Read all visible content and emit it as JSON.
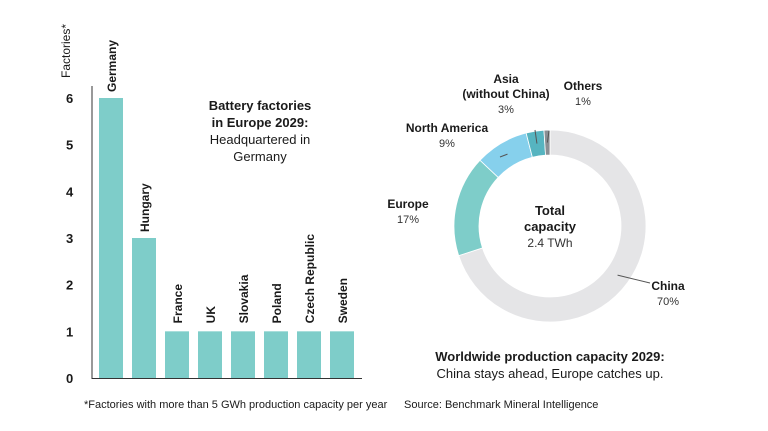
{
  "chart_data": [
    {
      "type": "bar",
      "title": "Battery factories",
      "title_line2": "in Europe 2029:",
      "subtitle": "Headquartered in",
      "subtitle_line2": "Germany",
      "ylabel": "Factories*",
      "xlabel": "",
      "ylim": [
        0,
        6
      ],
      "yticks": [
        "0",
        "1",
        "2",
        "3",
        "4",
        "5",
        "6"
      ],
      "categories": [
        "Germany",
        "Hungary",
        "France",
        "UK",
        "Slovakia",
        "Poland",
        "Czech Republic",
        "Sweden"
      ],
      "values": [
        6,
        3,
        1,
        1,
        1,
        1,
        1,
        1
      ],
      "bar_color": "#7ecdc9",
      "grid": false,
      "footnote": "*Factories with more than 5 GWh production capacity per year"
    },
    {
      "type": "pie",
      "donut": true,
      "caption_title": "Worldwide production capacity 2029:",
      "caption_subtitle": "China stays ahead, Europe catches up.",
      "center_title_line1": "Total",
      "center_title_line2": "capacity",
      "center_value": "2.4 TWh",
      "slices": [
        {
          "name": "China",
          "value": 70,
          "label": "70%",
          "color": "#e5e5e7"
        },
        {
          "name": "Europe",
          "value": 17,
          "label": "17%",
          "color": "#7ecdc9"
        },
        {
          "name": "North America",
          "value": 9,
          "label": "9%",
          "color": "#86d0ec"
        },
        {
          "name": "Asia",
          "name_line2": "(without China)",
          "value": 3,
          "label": "3%",
          "color": "#56b4c0"
        },
        {
          "name": "Others",
          "value": 1,
          "label": "1%",
          "color": "#8a8f94"
        }
      ],
      "source": "Source: Benchmark Mineral Intelligence"
    }
  ]
}
